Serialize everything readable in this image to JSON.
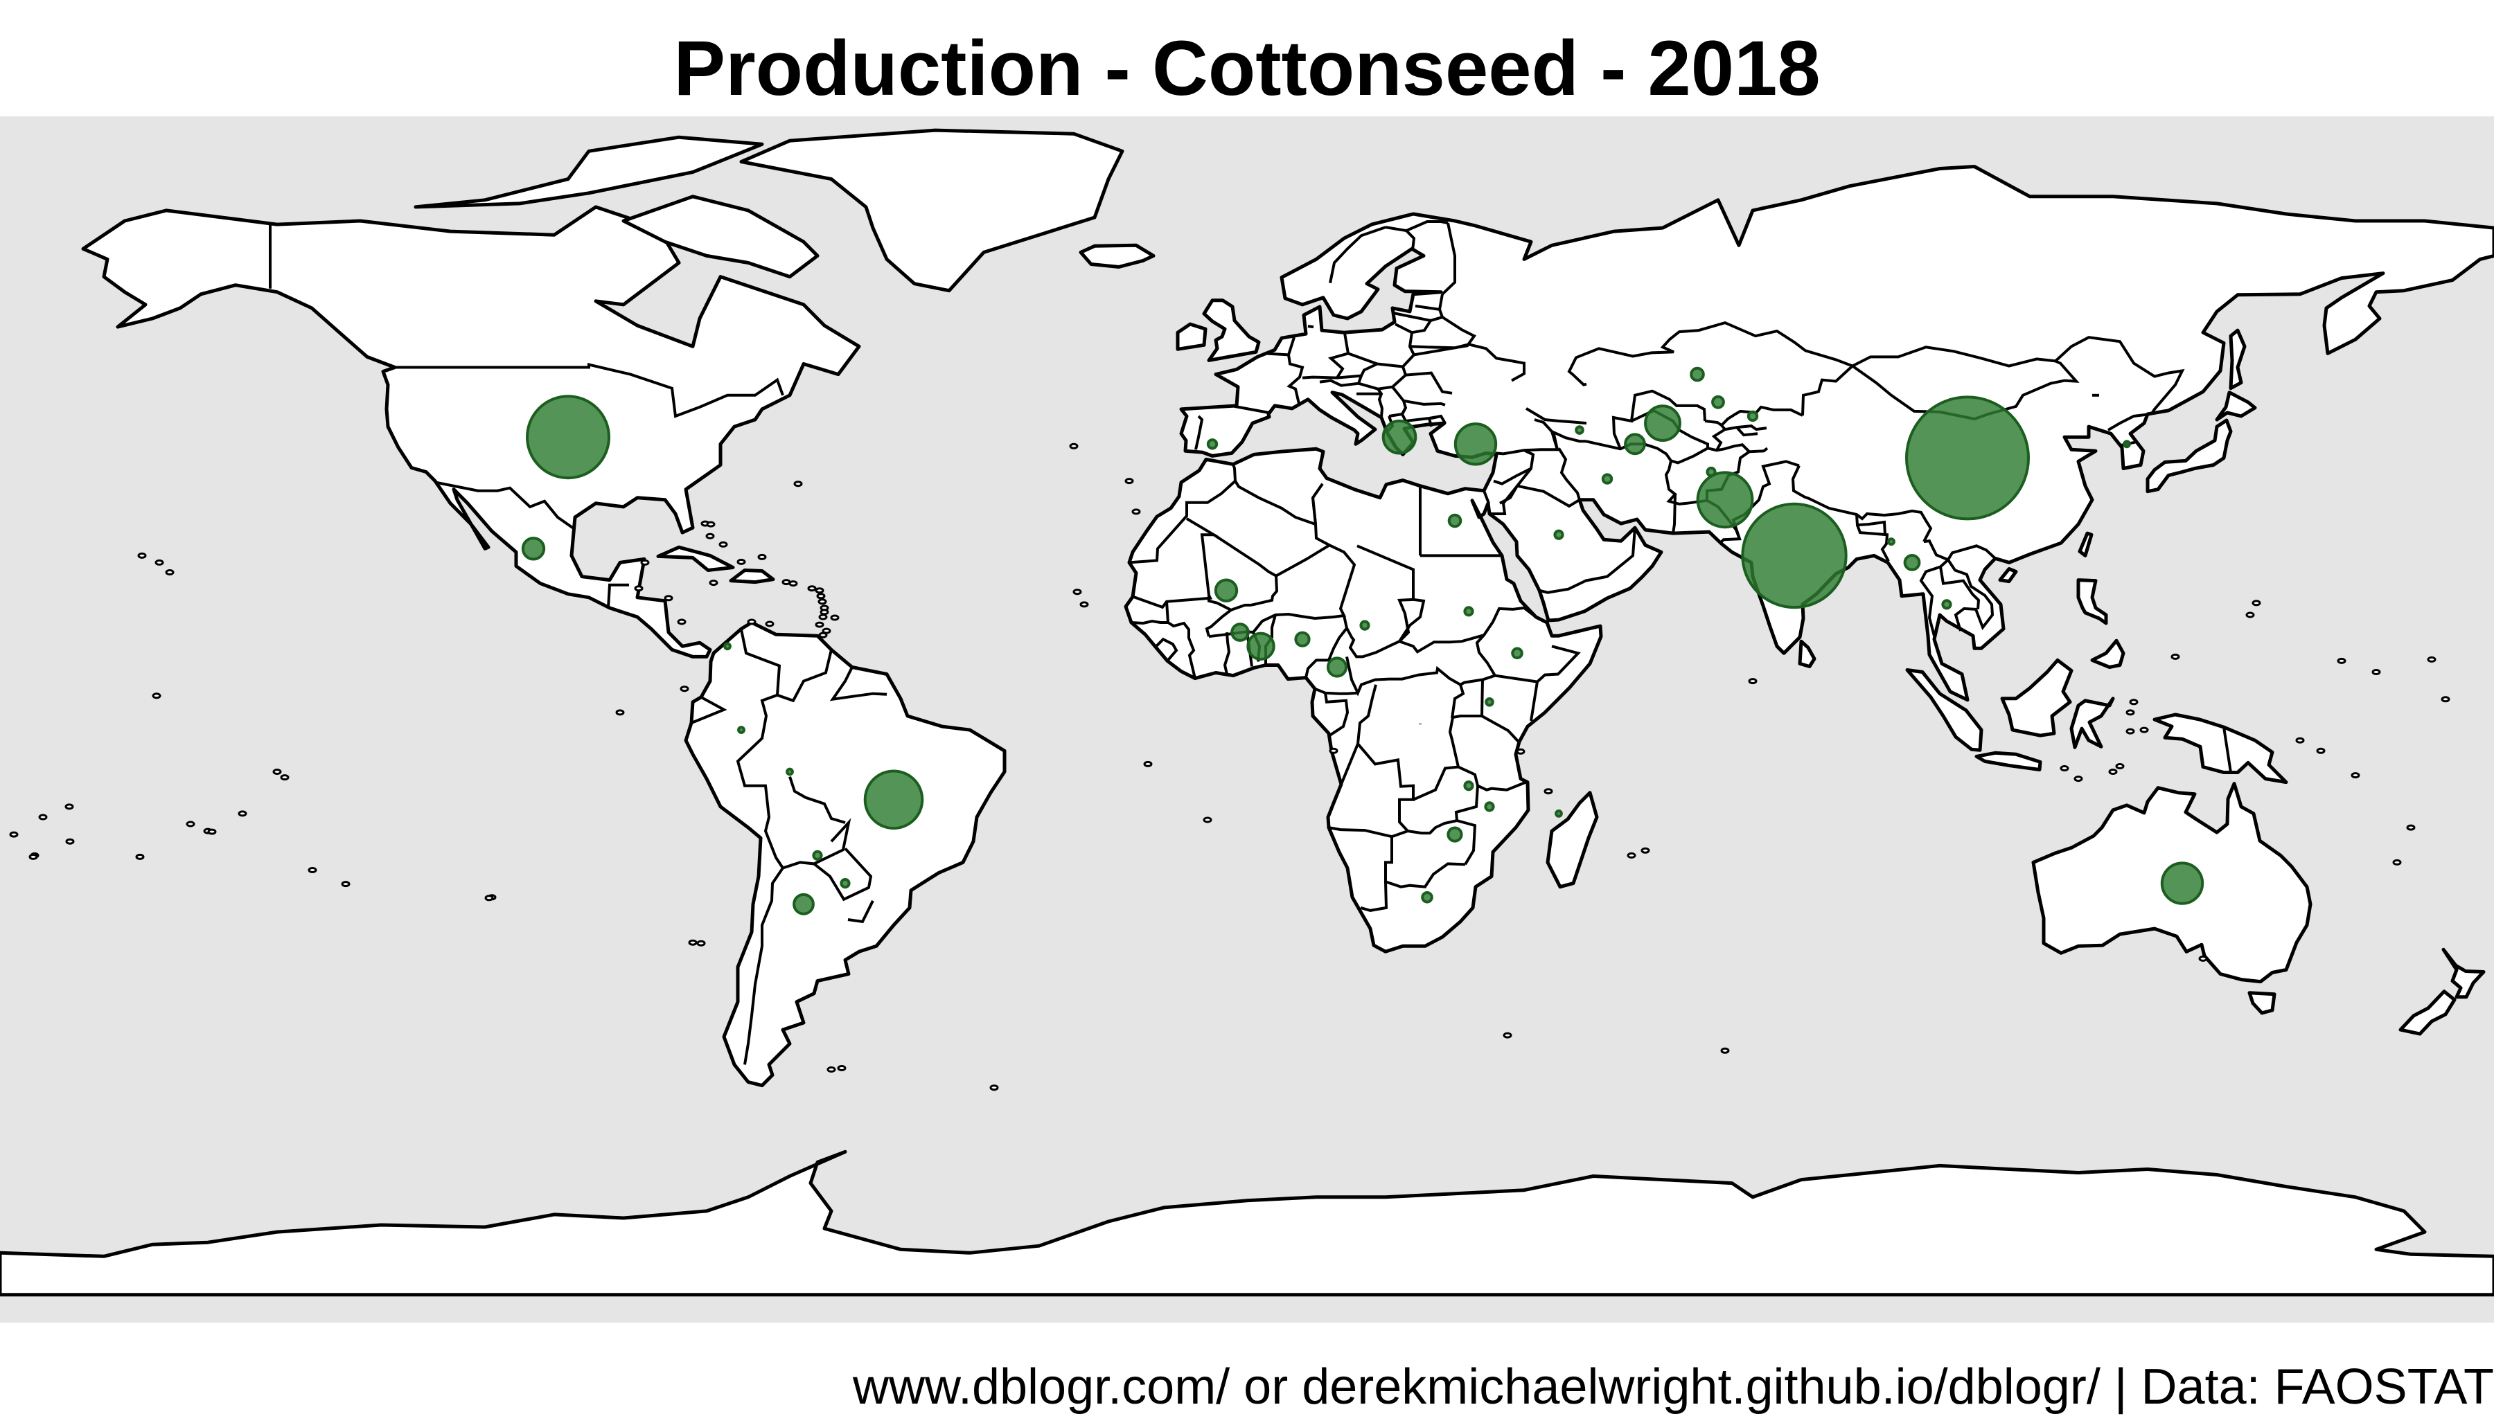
{
  "title": "Production - Cottonseed - 2018",
  "caption": "www.dblogr.com/ or derekmichaelwright.github.io/dblogr/ | Data: FAOSTAT",
  "colors": {
    "ocean": "#e5e5e5",
    "land": "#ffffff",
    "outline": "#000000",
    "bubble_fill": "#2e7d32",
    "bubble_stroke": "#1b5e20"
  },
  "chart_data": {
    "type": "bubble-map",
    "projection": "equirectangular",
    "metric": "cottonseed production (relative bubble area)",
    "points": [
      {
        "lon": -98,
        "lat": 39,
        "size": 0.45
      },
      {
        "lon": -103,
        "lat": 23,
        "size": 0.03
      },
      {
        "lon": -51,
        "lat": -13,
        "size": 0.22
      },
      {
        "lon": -62,
        "lat": -21,
        "size": 0.004
      },
      {
        "lon": -64,
        "lat": -28,
        "size": 0.025
      },
      {
        "lon": -58,
        "lat": -25,
        "size": 0.004
      },
      {
        "lon": -75,
        "lat": 9,
        "size": 0.002
      },
      {
        "lon": -66,
        "lat": -9,
        "size": 0.002
      },
      {
        "lon": -5,
        "lat": 38,
        "size": 0.005
      },
      {
        "lon": 22,
        "lat": 39,
        "size": 0.07
      },
      {
        "lon": 33,
        "lat": 38,
        "size": 0.11
      },
      {
        "lon": 30,
        "lat": 27,
        "size": 0.009
      },
      {
        "lon": 45,
        "lat": 25,
        "size": 0.004
      },
      {
        "lon": 52,
        "lat": 33,
        "size": 0.005
      },
      {
        "lon": 60,
        "lat": 41,
        "size": 0.08
      },
      {
        "lon": 68,
        "lat": 44,
        "size": 0.008
      },
      {
        "lon": 56,
        "lat": 38,
        "size": 0.025
      },
      {
        "lon": 67,
        "lat": 34,
        "size": 0.004
      },
      {
        "lon": 69,
        "lat": 30,
        "size": 0.2
      },
      {
        "lon": 79,
        "lat": 22,
        "size": 0.72
      },
      {
        "lon": 104,
        "lat": 36,
        "size": 1.0
      },
      {
        "lon": 93,
        "lat": 24,
        "size": 0.002
      },
      {
        "lon": 96,
        "lat": 21,
        "size": 0.014
      },
      {
        "lon": 101,
        "lat": 15,
        "size": 0.004
      },
      {
        "lon": 135,
        "lat": -25,
        "size": 0.11
      },
      {
        "lon": -3,
        "lat": 17,
        "size": 0.03
      },
      {
        "lon": -1,
        "lat": 11,
        "size": 0.018
      },
      {
        "lon": 2,
        "lat": 9,
        "size": 0.045
      },
      {
        "lon": 8,
        "lat": 10,
        "size": 0.012
      },
      {
        "lon": 17,
        "lat": 12,
        "size": 0.004
      },
      {
        "lon": 13,
        "lat": 6,
        "size": 0.022
      },
      {
        "lon": 32,
        "lat": 14,
        "size": 0.004
      },
      {
        "lon": 39,
        "lat": 8,
        "size": 0.006
      },
      {
        "lon": 35,
        "lat": 1,
        "size": 0.003
      },
      {
        "lon": 32,
        "lat": -11,
        "size": 0.004
      },
      {
        "lon": 30,
        "lat": -18,
        "size": 0.012
      },
      {
        "lon": 35,
        "lat": -14,
        "size": 0.004
      },
      {
        "lon": 26,
        "lat": -27,
        "size": 0.006
      },
      {
        "lon": 45,
        "lat": -15,
        "size": 0.002
      },
      {
        "lon": 73,
        "lat": 42,
        "size": 0.005
      },
      {
        "lon": 48,
        "lat": 40,
        "size": 0.003
      },
      {
        "lon": 127,
        "lat": 38,
        "size": 0.002
      },
      {
        "lon": -73,
        "lat": -3,
        "size": 0.002
      },
      {
        "lon": 65,
        "lat": 48,
        "size": 0.01
      }
    ]
  }
}
